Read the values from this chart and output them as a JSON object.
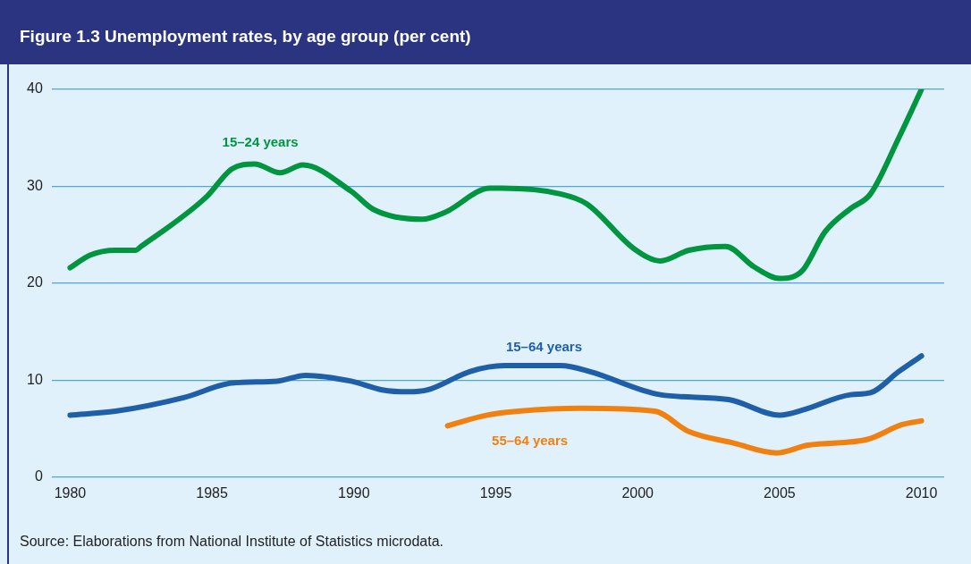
{
  "chart_data": {
    "type": "line",
    "title": "Figure 1.3  Unemployment rates, by age group (per cent)",
    "annotations": [
      "Source: Elaborations from National Institute of Statistics microdata."
    ],
    "xlim": [
      1979.35,
      2010.8
    ],
    "xticks": [
      1980,
      1985,
      1990,
      1995,
      2000,
      2005,
      2010
    ],
    "ylim": [
      0,
      40
    ],
    "yticks": [
      0,
      10,
      20,
      30,
      40
    ],
    "grid": "y",
    "legend": false,
    "marker": "none",
    "line_style": "solid",
    "series": [
      {
        "name": "15–24 years",
        "color": "#009640",
        "x": [
          1980,
          1980.7,
          1981.6,
          1982.3,
          1982.5,
          1984.8,
          1985.7,
          1986.5,
          1987.4,
          1988.2,
          1989.9,
          1990.7,
          1992.4,
          1993.2,
          1994.8,
          1995.2,
          1997.3,
          1998.2,
          1999.9,
          2000.8,
          2001.8,
          2003.1,
          2004.1,
          2005,
          2005.8,
          2006.6,
          2007.5,
          2008.2,
          2009.2,
          2010
        ],
        "values": [
          21.6,
          22.9,
          23.4,
          23.4,
          23.8,
          28.9,
          31.8,
          32.3,
          31.4,
          32.2,
          29.5,
          27.6,
          26.6,
          27.3,
          29.8,
          29.8,
          29.2,
          28.2,
          23.5,
          22.3,
          23.4,
          23.8,
          21.7,
          20.5,
          21.3,
          25.3,
          27.7,
          29.2,
          35,
          40
        ]
      },
      {
        "name": "15–64 years",
        "color": "#1f5fa8",
        "x": [
          1980,
          1981.6,
          1984,
          1985.7,
          1987.3,
          1988.3,
          1989.9,
          1991,
          1991.9,
          1992.6,
          1994.1,
          1995.3,
          1997.3,
          1998.3,
          2000.8,
          2003.2,
          2005,
          2005.8,
          2007.5,
          2008.2,
          2009.2,
          2010
        ],
        "values": [
          6.4,
          6.8,
          8.2,
          9.7,
          9.9,
          10.5,
          9.9,
          9,
          8.8,
          9,
          10.9,
          11.5,
          11.5,
          10.9,
          8.5,
          8,
          6.4,
          6.9,
          8.5,
          8.7,
          10.9,
          12.5
        ]
      },
      {
        "name": "55–64 years",
        "color": "#f08010",
        "x": [
          1993.3,
          1994.7,
          1995.8,
          1998,
          2000.6,
          2001.8,
          2003.4,
          2004.9,
          2006,
          2008.1,
          2009.3,
          2010
        ],
        "values": [
          5.3,
          6.4,
          6.8,
          7.1,
          6.8,
          4.7,
          3.5,
          2.5,
          3.3,
          3.9,
          5.4,
          5.8
        ]
      }
    ]
  }
}
